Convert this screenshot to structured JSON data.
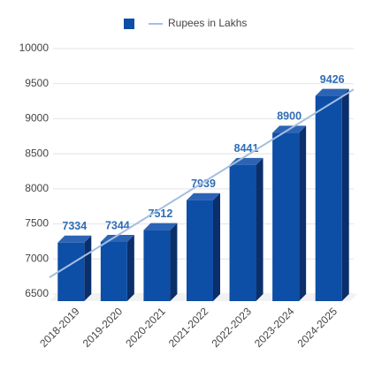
{
  "chart_data": {
    "type": "bar3d",
    "categories": [
      "2018-2019",
      "2019-2020",
      "2020-2021",
      "2021-2022",
      "2022-2023",
      "2023-2024",
      "2024-2025"
    ],
    "values": [
      7334,
      7344,
      7512,
      7939,
      8441,
      8900,
      9426
    ],
    "color": "#0d4ea6",
    "trendline": {
      "type": "linear",
      "label": "Rupees in Lakhs",
      "color": "#a4bfe2"
    },
    "ylim": [
      6500,
      10000
    ],
    "yticks": [
      6500,
      7000,
      7500,
      8000,
      8500,
      9000,
      9500,
      10000
    ],
    "grid": true,
    "legend": "top"
  }
}
